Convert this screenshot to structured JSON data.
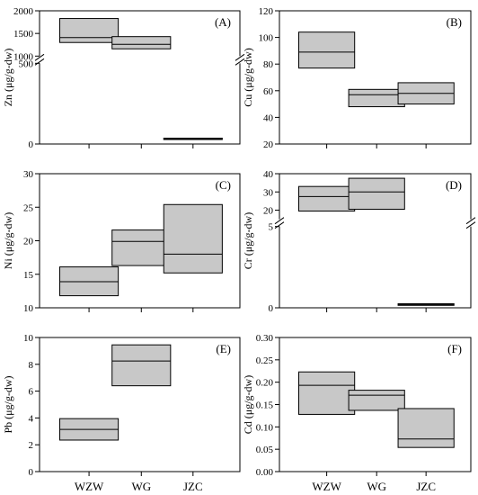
{
  "figure": {
    "categories": [
      "WZW",
      "WG",
      "JZC"
    ],
    "box_fill": "#c8c8c8",
    "line_color": "#000000"
  },
  "chart_data": [
    {
      "type": "box",
      "panel": "(A)",
      "ylabel": "Zn (μg/g-dw)",
      "axis_break": true,
      "ylim_lower": [
        0,
        500
      ],
      "ylim_upper": [
        1000,
        2000
      ],
      "yticks": [
        0,
        500,
        1000,
        1500,
        2000
      ],
      "boxes": [
        {
          "category": "WZW",
          "q1": 1300,
          "median": 1410,
          "q3": 1830
        },
        {
          "category": "WG",
          "q1": 1160,
          "median": 1260,
          "q3": 1430
        },
        {
          "category": "JZC",
          "q1": 28,
          "median": 32,
          "q3": 36
        }
      ]
    },
    {
      "type": "box",
      "panel": "(B)",
      "ylabel": "Cu (μg/g-dw)",
      "ylim": [
        20,
        120
      ],
      "yticks": [
        20,
        40,
        60,
        80,
        100,
        120
      ],
      "boxes": [
        {
          "category": "WZW",
          "q1": 77,
          "median": 89,
          "q3": 104
        },
        {
          "category": "WG",
          "q1": 48,
          "median": 57,
          "q3": 61
        },
        {
          "category": "JZC",
          "q1": 50,
          "median": 58,
          "q3": 66
        }
      ]
    },
    {
      "type": "box",
      "panel": "(C)",
      "ylabel": "Ni (μg/g-dw)",
      "ylim": [
        10,
        30
      ],
      "yticks": [
        10,
        15,
        20,
        25,
        30
      ],
      "boxes": [
        {
          "category": "WZW",
          "q1": 11.8,
          "median": 13.9,
          "q3": 16.1
        },
        {
          "category": "WG",
          "q1": 16.3,
          "median": 19.9,
          "q3": 21.6
        },
        {
          "category": "JZC",
          "q1": 15.2,
          "median": 18.0,
          "q3": 25.4
        }
      ]
    },
    {
      "type": "box",
      "panel": "(D)",
      "ylabel": "Cr (μg/g-dw)",
      "axis_break": true,
      "ylim_lower": [
        0,
        5
      ],
      "ylim_upper": [
        15,
        40
      ],
      "yticks": [
        0,
        5,
        20,
        30,
        40
      ],
      "boxes": [
        {
          "category": "WZW",
          "q1": 19.5,
          "median": 27.5,
          "q3": 33
        },
        {
          "category": "WG",
          "q1": 20.5,
          "median": 30,
          "q3": 37.5
        },
        {
          "category": "JZC",
          "q1": 0.15,
          "median": 0.2,
          "q3": 0.25
        }
      ]
    },
    {
      "type": "box",
      "panel": "(E)",
      "ylabel": "Pb (μg/g-dw)",
      "ylim": [
        0,
        10
      ],
      "yticks": [
        0,
        2,
        4,
        6,
        8,
        10
      ],
      "boxes": [
        {
          "category": "WZW",
          "q1": 2.35,
          "median": 3.15,
          "q3": 3.95
        },
        {
          "category": "WG",
          "q1": 6.4,
          "median": 8.25,
          "q3": 9.45
        }
      ]
    },
    {
      "type": "box",
      "panel": "(F)",
      "ylabel": "Cd (μg/g-dw)",
      "ylim": [
        0,
        0.3
      ],
      "yticks": [
        "0.00",
        "0.05",
        "0.10",
        "0.15",
        "0.20",
        "0.25",
        "0.30"
      ],
      "boxes": [
        {
          "category": "WZW",
          "q1": 0.128,
          "median": 0.193,
          "q3": 0.223
        },
        {
          "category": "WG",
          "q1": 0.137,
          "median": 0.171,
          "q3": 0.182
        },
        {
          "category": "JZC",
          "q1": 0.054,
          "median": 0.073,
          "q3": 0.141
        }
      ]
    }
  ]
}
